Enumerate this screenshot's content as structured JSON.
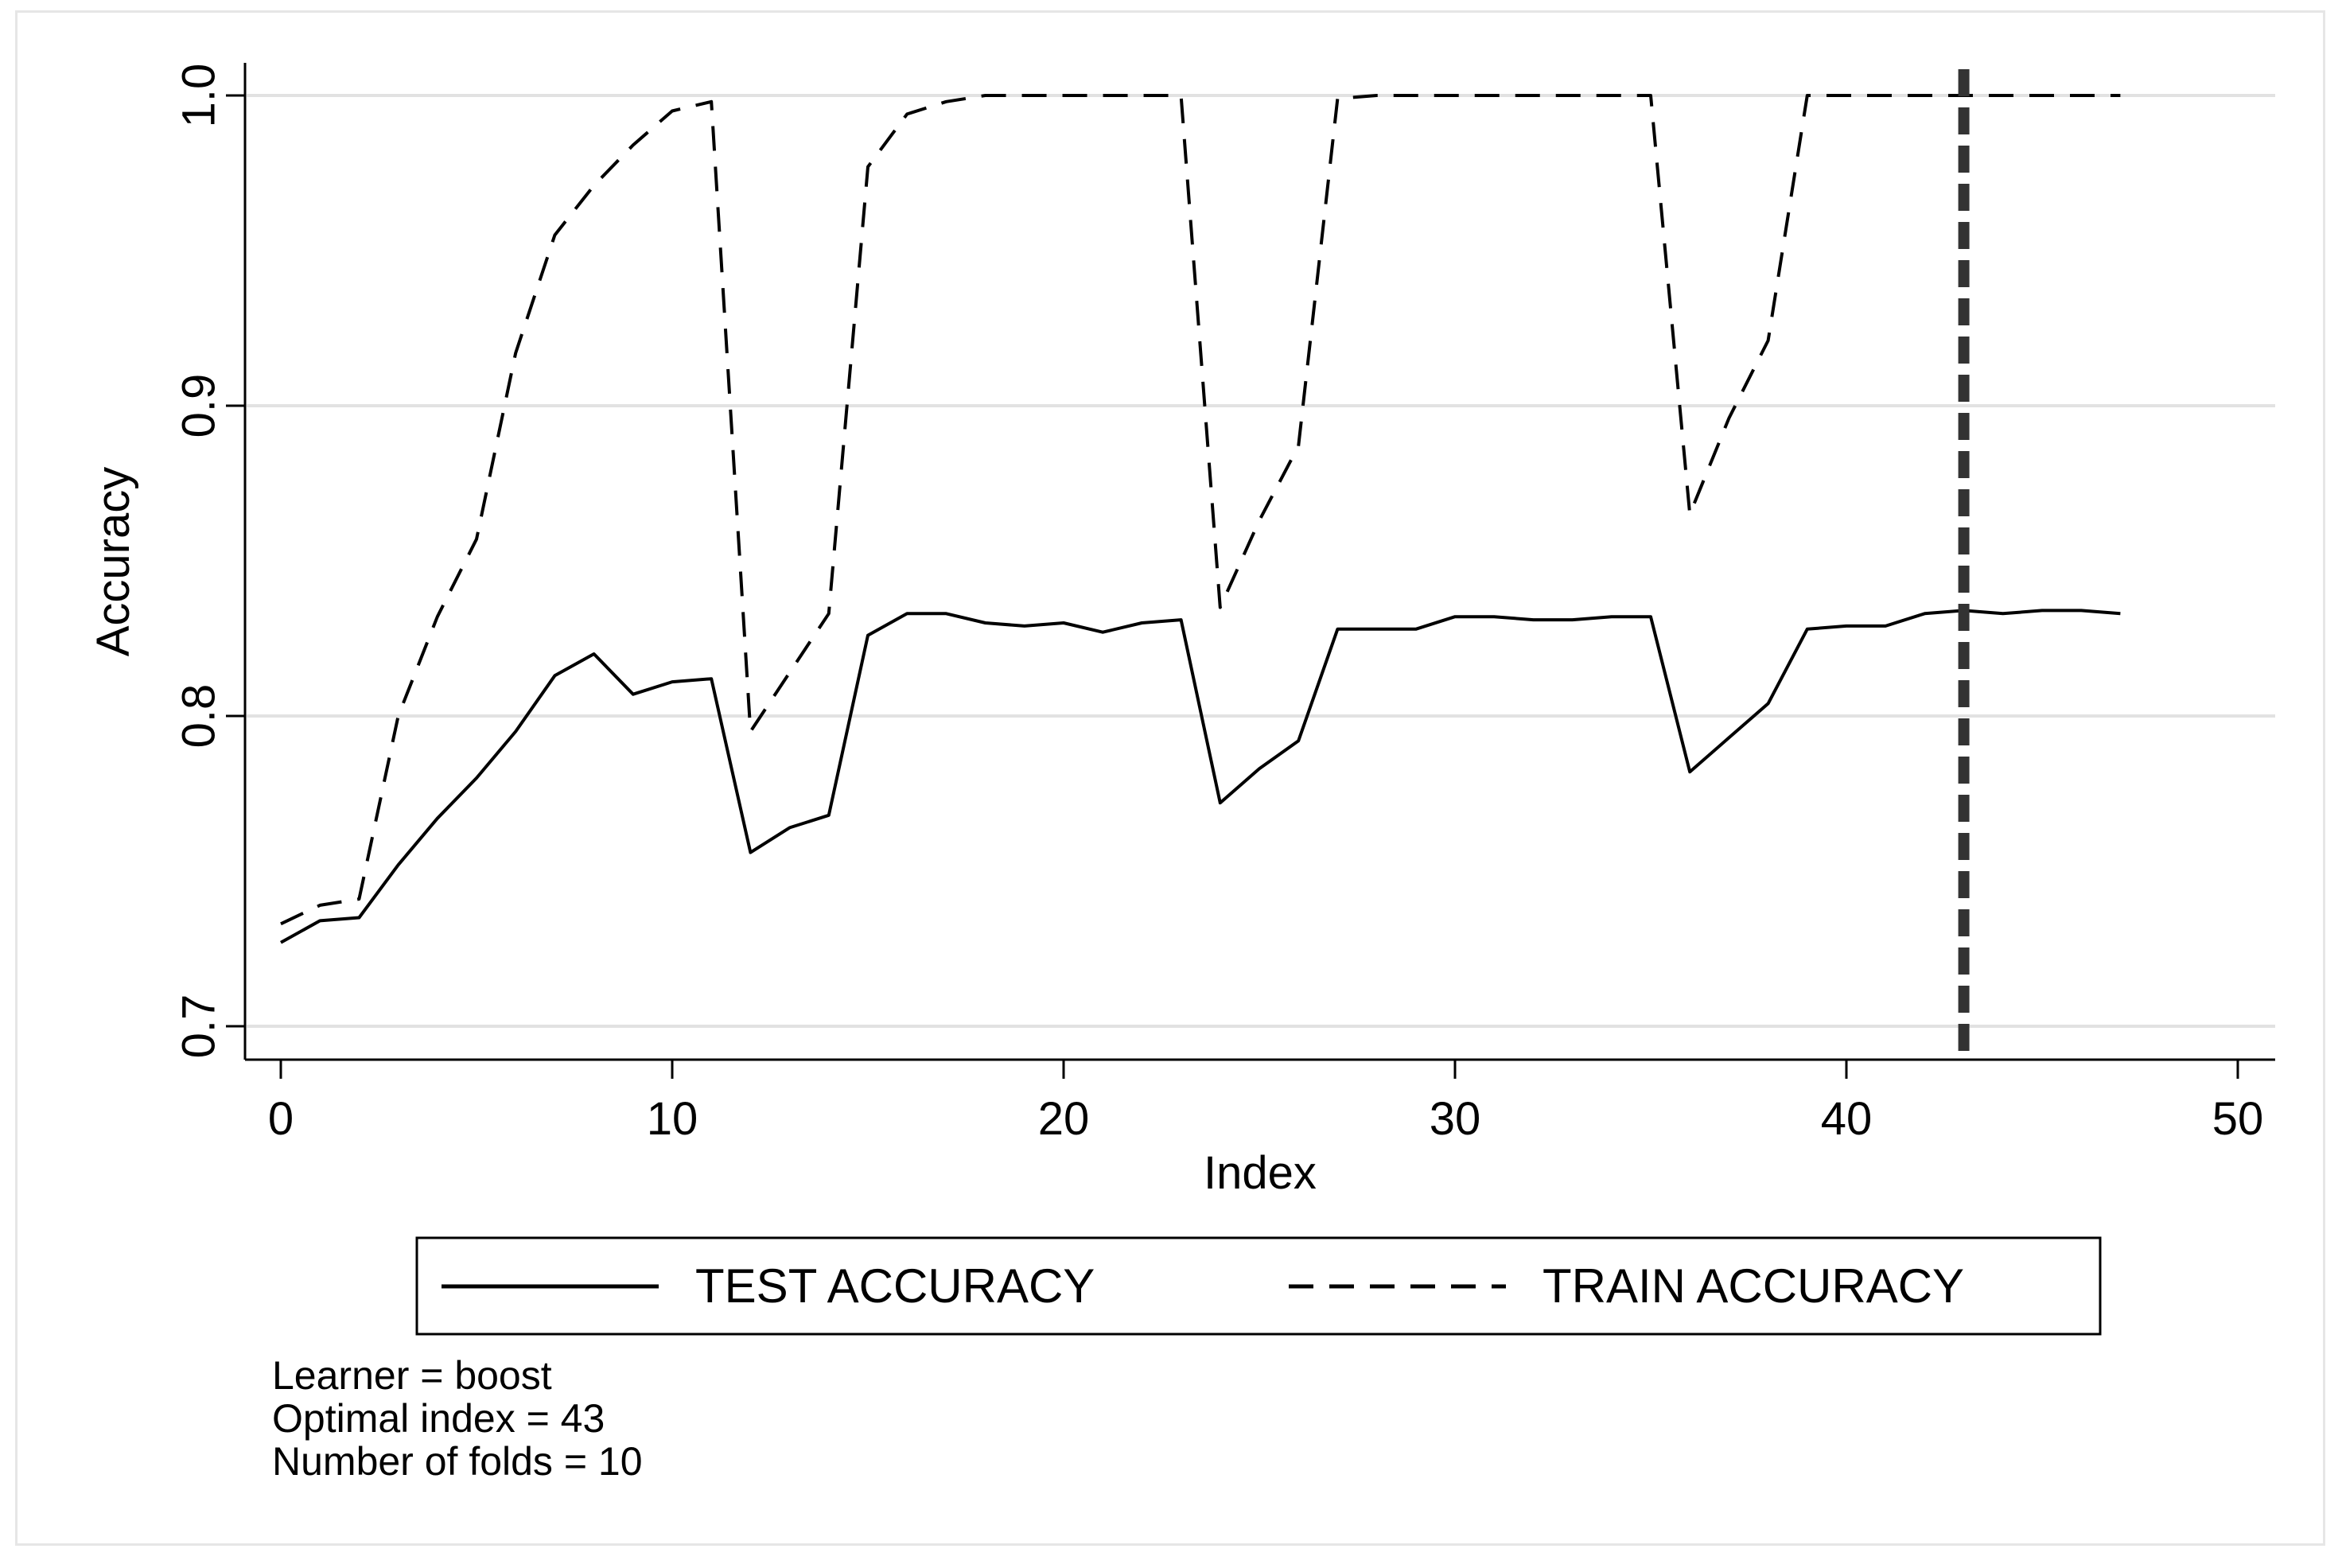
{
  "chart_data": {
    "type": "line",
    "xlabel": "Index",
    "ylabel": "Accuracy",
    "xlim": [
      0,
      50
    ],
    "ylim": [
      0.7,
      1.0
    ],
    "xticks": [
      0,
      10,
      20,
      30,
      40,
      50
    ],
    "yticks": [
      0.7,
      0.8,
      0.9,
      1.0
    ],
    "ytick_labels": [
      "0.7",
      "0.8",
      "0.9",
      "1.0"
    ],
    "grid": true,
    "legend_position": "bottom",
    "x": [
      0,
      1,
      2,
      3,
      4,
      5,
      6,
      7,
      8,
      9,
      10,
      11,
      12,
      13,
      14,
      15,
      16,
      17,
      18,
      19,
      20,
      21,
      22,
      23,
      24,
      25,
      26,
      27,
      28,
      29,
      30,
      31,
      32,
      33,
      34,
      35,
      36,
      37,
      38,
      39,
      40,
      41,
      42,
      43,
      44,
      45,
      46,
      47
    ],
    "series": [
      {
        "name": "TEST ACCURACY",
        "style": "solid",
        "color": "#000000",
        "values": [
          0.727,
          0.734,
          0.735,
          0.752,
          0.767,
          0.78,
          0.795,
          0.813,
          0.82,
          0.807,
          0.811,
          0.812,
          0.756,
          0.764,
          0.768,
          0.826,
          0.833,
          0.833,
          0.83,
          0.829,
          0.83,
          0.827,
          0.83,
          0.831,
          0.772,
          0.783,
          0.792,
          0.828,
          0.828,
          0.828,
          0.832,
          0.832,
          0.831,
          0.831,
          0.832,
          0.832,
          0.782,
          0.793,
          0.804,
          0.828,
          0.829,
          0.829,
          0.833,
          0.834,
          0.833,
          0.834,
          0.834,
          0.833
        ]
      },
      {
        "name": "TRAIN ACCURACY",
        "style": "dashed",
        "color": "#000000",
        "values": [
          0.733,
          0.739,
          0.741,
          0.8,
          0.832,
          0.857,
          0.917,
          0.955,
          0.971,
          0.984,
          0.995,
          0.998,
          0.795,
          0.814,
          0.833,
          0.977,
          0.994,
          0.998,
          1.0,
          1.0,
          1.0,
          1.0,
          1.0,
          1.0,
          0.835,
          0.863,
          0.887,
          0.999,
          1.0,
          1.0,
          1.0,
          1.0,
          1.0,
          1.0,
          1.0,
          1.0,
          0.865,
          0.896,
          0.921,
          1.0,
          1.0,
          1.0,
          1.0,
          1.0,
          1.0,
          1.0,
          1.0,
          1.0
        ]
      }
    ],
    "vline": {
      "x": 43,
      "style": "dashed",
      "color": "#333333"
    },
    "annotations": [
      "Learner = boost",
      "Optimal index = 43",
      "Number of folds = 10"
    ]
  }
}
